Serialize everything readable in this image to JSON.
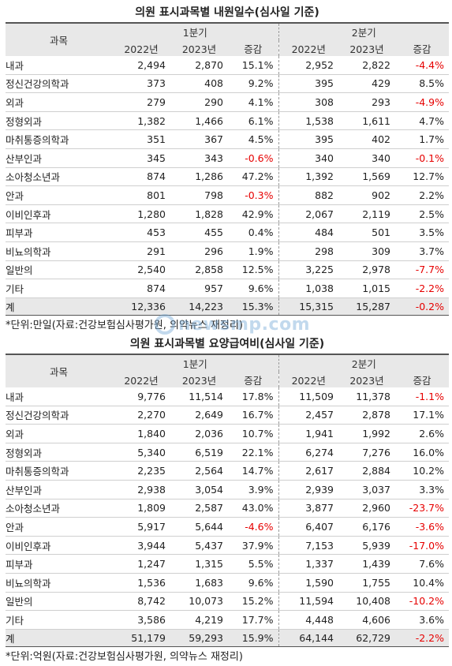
{
  "tables": [
    {
      "title": "의원 표시과목별 내원일수(심사일 기준)",
      "col_dept": "과목",
      "group1": "1분기",
      "group2": "2분기",
      "subheaders": [
        "2022년",
        "2023년",
        "증감",
        "2022년",
        "2023년",
        "증감"
      ],
      "rows": [
        {
          "dept": "내과",
          "q1_2022": "2,494",
          "q1_2023": "2,870",
          "q1_chg": "15.1%",
          "q2_2022": "2,952",
          "q2_2023": "2,822",
          "q2_chg": "-4.4%"
        },
        {
          "dept": "정신건강의학과",
          "q1_2022": "373",
          "q1_2023": "408",
          "q1_chg": "9.2%",
          "q2_2022": "395",
          "q2_2023": "429",
          "q2_chg": "8.5%"
        },
        {
          "dept": "외과",
          "q1_2022": "279",
          "q1_2023": "290",
          "q1_chg": "4.1%",
          "q2_2022": "308",
          "q2_2023": "293",
          "q2_chg": "-4.9%"
        },
        {
          "dept": "정형외과",
          "q1_2022": "1,382",
          "q1_2023": "1,466",
          "q1_chg": "6.1%",
          "q2_2022": "1,538",
          "q2_2023": "1,611",
          "q2_chg": "4.7%"
        },
        {
          "dept": "마취통증의학과",
          "q1_2022": "351",
          "q1_2023": "367",
          "q1_chg": "4.5%",
          "q2_2022": "395",
          "q2_2023": "402",
          "q2_chg": "1.7%"
        },
        {
          "dept": "산부인과",
          "q1_2022": "345",
          "q1_2023": "343",
          "q1_chg": "-0.6%",
          "q2_2022": "340",
          "q2_2023": "340",
          "q2_chg": "-0.1%"
        },
        {
          "dept": "소아청소년과",
          "q1_2022": "874",
          "q1_2023": "1,286",
          "q1_chg": "47.2%",
          "q2_2022": "1,392",
          "q2_2023": "1,569",
          "q2_chg": "12.7%"
        },
        {
          "dept": "안과",
          "q1_2022": "801",
          "q1_2023": "798",
          "q1_chg": "-0.3%",
          "q2_2022": "882",
          "q2_2023": "902",
          "q2_chg": "2.2%"
        },
        {
          "dept": "이비인후과",
          "q1_2022": "1,280",
          "q1_2023": "1,828",
          "q1_chg": "42.9%",
          "q2_2022": "2,067",
          "q2_2023": "2,119",
          "q2_chg": "2.5%"
        },
        {
          "dept": "피부과",
          "q1_2022": "453",
          "q1_2023": "455",
          "q1_chg": "0.4%",
          "q2_2022": "484",
          "q2_2023": "501",
          "q2_chg": "3.5%"
        },
        {
          "dept": "비뇨의학과",
          "q1_2022": "291",
          "q1_2023": "296",
          "q1_chg": "1.9%",
          "q2_2022": "298",
          "q2_2023": "309",
          "q2_chg": "3.7%"
        },
        {
          "dept": "일반의",
          "q1_2022": "2,540",
          "q1_2023": "2,858",
          "q1_chg": "12.5%",
          "q2_2022": "3,225",
          "q2_2023": "2,978",
          "q2_chg": "-7.7%"
        },
        {
          "dept": "기타",
          "q1_2022": "874",
          "q1_2023": "957",
          "q1_chg": "9.6%",
          "q2_2022": "1,038",
          "q2_2023": "1,015",
          "q2_chg": "-2.2%"
        }
      ],
      "total": {
        "dept": "계",
        "q1_2022": "12,336",
        "q1_2023": "14,223",
        "q1_chg": "15.3%",
        "q2_2022": "15,315",
        "q2_2023": "15,287",
        "q2_chg": "-0.2%"
      },
      "note": "*단위:만일(자료:건강보험심사평가원, 의약뉴스 재정리)"
    },
    {
      "title": "의원 표시과목별 요양급여비(심사일 기준)",
      "col_dept": "과목",
      "group1": "1분기",
      "group2": "2분기",
      "subheaders": [
        "2022년",
        "2023년",
        "증감",
        "2022년",
        "2023년",
        "증감"
      ],
      "rows": [
        {
          "dept": "내과",
          "q1_2022": "9,776",
          "q1_2023": "11,514",
          "q1_chg": "17.8%",
          "q2_2022": "11,509",
          "q2_2023": "11,378",
          "q2_chg": "-1.1%"
        },
        {
          "dept": "정신건강의학과",
          "q1_2022": "2,270",
          "q1_2023": "2,649",
          "q1_chg": "16.7%",
          "q2_2022": "2,457",
          "q2_2023": "2,878",
          "q2_chg": "17.1%"
        },
        {
          "dept": "외과",
          "q1_2022": "1,840",
          "q1_2023": "2,036",
          "q1_chg": "10.7%",
          "q2_2022": "1,941",
          "q2_2023": "1,992",
          "q2_chg": "2.6%"
        },
        {
          "dept": "정형외과",
          "q1_2022": "5,340",
          "q1_2023": "6,519",
          "q1_chg": "22.1%",
          "q2_2022": "6,274",
          "q2_2023": "7,276",
          "q2_chg": "16.0%"
        },
        {
          "dept": "마취통증의학과",
          "q1_2022": "2,235",
          "q1_2023": "2,564",
          "q1_chg": "14.7%",
          "q2_2022": "2,617",
          "q2_2023": "2,884",
          "q2_chg": "10.2%"
        },
        {
          "dept": "산부인과",
          "q1_2022": "2,938",
          "q1_2023": "3,054",
          "q1_chg": "3.9%",
          "q2_2022": "2,939",
          "q2_2023": "3,037",
          "q2_chg": "3.3%"
        },
        {
          "dept": "소아청소년과",
          "q1_2022": "1,809",
          "q1_2023": "2,587",
          "q1_chg": "43.0%",
          "q2_2022": "3,877",
          "q2_2023": "2,960",
          "q2_chg": "-23.7%"
        },
        {
          "dept": "안과",
          "q1_2022": "5,917",
          "q1_2023": "5,644",
          "q1_chg": "-4.6%",
          "q2_2022": "6,407",
          "q2_2023": "6,176",
          "q2_chg": "-3.6%"
        },
        {
          "dept": "이비인후과",
          "q1_2022": "3,944",
          "q1_2023": "5,437",
          "q1_chg": "37.9%",
          "q2_2022": "7,153",
          "q2_2023": "5,939",
          "q2_chg": "-17.0%"
        },
        {
          "dept": "피부과",
          "q1_2022": "1,247",
          "q1_2023": "1,315",
          "q1_chg": "5.5%",
          "q2_2022": "1,337",
          "q2_2023": "1,439",
          "q2_chg": "7.6%"
        },
        {
          "dept": "비뇨의학과",
          "q1_2022": "1,536",
          "q1_2023": "1,683",
          "q1_chg": "9.6%",
          "q2_2022": "1,590",
          "q2_2023": "1,755",
          "q2_chg": "10.4%"
        },
        {
          "dept": "일반의",
          "q1_2022": "8,742",
          "q1_2023": "10,073",
          "q1_chg": "15.2%",
          "q2_2022": "11,594",
          "q2_2023": "10,408",
          "q2_chg": "-10.2%"
        },
        {
          "dept": "기타",
          "q1_2022": "3,586",
          "q1_2023": "4,219",
          "q1_chg": "17.7%",
          "q2_2022": "4,448",
          "q2_2023": "4,606",
          "q2_chg": "3.6%"
        }
      ],
      "total": {
        "dept": "계",
        "q1_2022": "51,179",
        "q1_2023": "59,293",
        "q1_chg": "15.9%",
        "q2_2022": "64,144",
        "q2_2023": "62,729",
        "q2_chg": "-2.2%"
      },
      "note": "*단위:억원(자료:건강보험심사평가원, 의약뉴스 재정리)"
    }
  ],
  "watermark": {
    "text": "newsmp.com"
  },
  "colors": {
    "negative": "#e60000",
    "header_bg": "#e8e8e8"
  }
}
